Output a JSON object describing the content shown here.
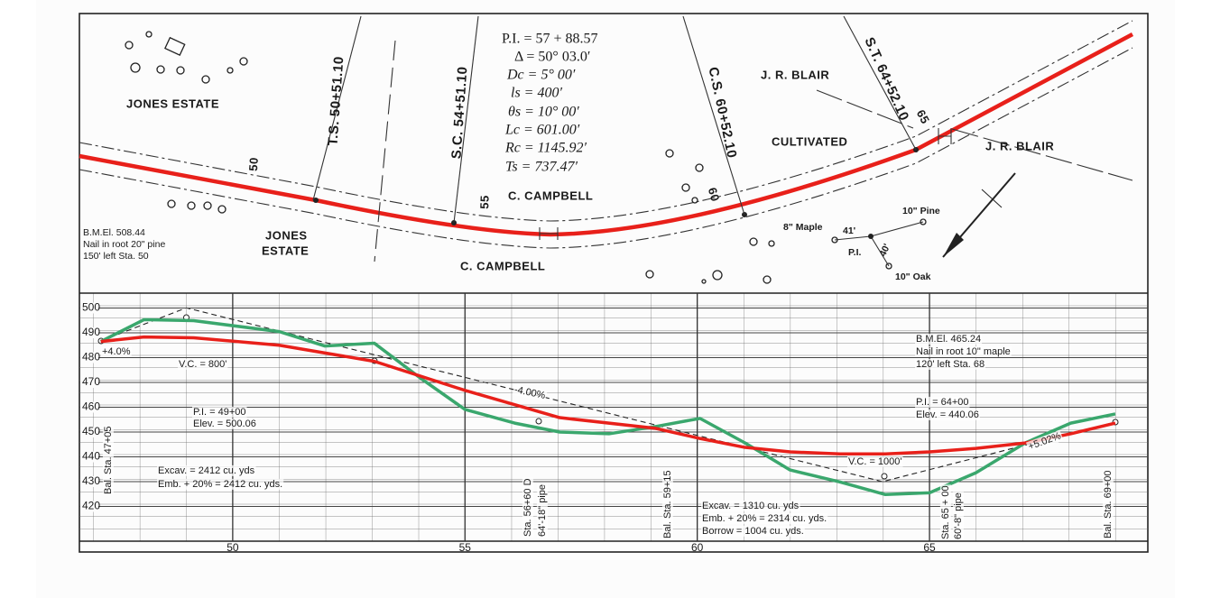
{
  "plan": {
    "jones_estate_north": "JONES ESTATE",
    "jones_estate_south": [
      "JONES",
      "ESTATE"
    ],
    "bench_mark_west": [
      "B.M.El. 508.44",
      "Nail in root 20\" pine",
      "150' left Sta. 50"
    ],
    "ts": "T.S. 50+51.10",
    "sc": "S.C. 54+51.10",
    "cs": "C.S. 60+52.10",
    "st": "S.T. 64+52.10",
    "stations": [
      "50",
      "55",
      "60",
      "65"
    ],
    "curve_data": [
      "P.I. = 57 + 88.57",
      "Δ = 50° 03.0′",
      "Dc = 5° 00′",
      "ls = 400′",
      "θs = 10° 00′",
      "Lc = 601.00′",
      "Rc = 1145.92′",
      "Ts = 737.47′"
    ],
    "campbell_north": "C. CAMPBELL",
    "campbell_south": "C. CAMPBELL",
    "blair_north": "J. R. BLAIR",
    "blair_east": "J. R. BLAIR",
    "cultivated": "CULTIVATED",
    "pi_ties": {
      "maple": "8\" Maple",
      "maple_dist": "41'",
      "pine": "10\" Pine",
      "pi": "P.I.",
      "oak_dist": "40'",
      "oak": "10\" Oak"
    }
  },
  "profile": {
    "xlim": [
      46.7,
      69.7
    ],
    "ylim": [
      406,
      506
    ],
    "xticks": [
      50,
      55,
      60,
      65
    ],
    "yticks": [
      420,
      430,
      440,
      450,
      460,
      470,
      480,
      490,
      500
    ],
    "ground": {
      "color": "#3aa76d",
      "x": [
        47.16,
        48.09,
        49.16,
        51.0,
        51.98,
        53.05,
        54.03,
        55.0,
        56.07,
        57.04,
        58.1,
        59.1,
        60.06,
        61.03,
        62.0,
        63.07,
        64.05,
        65.0,
        66.0,
        67.06,
        68.04,
        69.0
      ],
      "values": [
        486.5,
        495.3,
        494.9,
        490.5,
        484.7,
        485.8,
        471.9,
        459.1,
        453.6,
        450.0,
        449.3,
        452.2,
        455.5,
        445.6,
        434.7,
        429.9,
        424.8,
        425.5,
        433.6,
        445.6,
        453.6,
        457.3
      ]
    },
    "grade": {
      "color": "#e8201a",
      "x": [
        47.16,
        48.09,
        49.16,
        51.0,
        53.05,
        55.0,
        57.04,
        59.1,
        60.06,
        61.03,
        62.0,
        63.07,
        64.05,
        65.0,
        66.0,
        67.06,
        68.04,
        69.0
      ],
      "values": [
        486.5,
        488.3,
        488.0,
        485.0,
        478.5,
        466.8,
        455.8,
        451.5,
        447.4,
        443.8,
        442.0,
        441.2,
        441.2,
        442.0,
        443.4,
        445.6,
        449.3,
        453.6
      ]
    },
    "annotations": {
      "grade_in": "+4.0%",
      "vc_west": "V.C. = 800'",
      "pi_west": [
        "P.I. = 49+00",
        "Elev. = 500.06"
      ],
      "grade_mid": "-4.00%",
      "earth_west": [
        "Excav. = 2412 cu. yds",
        "Emb. + 20% = 2412 cu. yds."
      ],
      "bal_start": "Bal. Sta. 47+05",
      "culvert_west": [
        "Sta. 56+60 D",
        "64'-18\" pipe"
      ],
      "bal_mid": "Bal. Sta. 59+15",
      "earth_east": [
        "Excav. = 1310 cu. yds",
        "Emb. + 20% = 2314 cu. yds.",
        "Borrow = 1004 cu. yds."
      ],
      "vc_east": "V.C. = 1000'",
      "bench_mark_east": [
        "B.M.El. 465.24",
        "Nail in root 10\" maple",
        "120' left Sta. 68"
      ],
      "pi_east": [
        "P.I. = 64+00",
        "Elev. = 440.06"
      ],
      "grade_out": "+5.02%",
      "culvert_east": [
        "Sta. 65 + 00",
        "60'-8\" pipe"
      ],
      "bal_end": "Bal. Sta. 69+00"
    }
  }
}
